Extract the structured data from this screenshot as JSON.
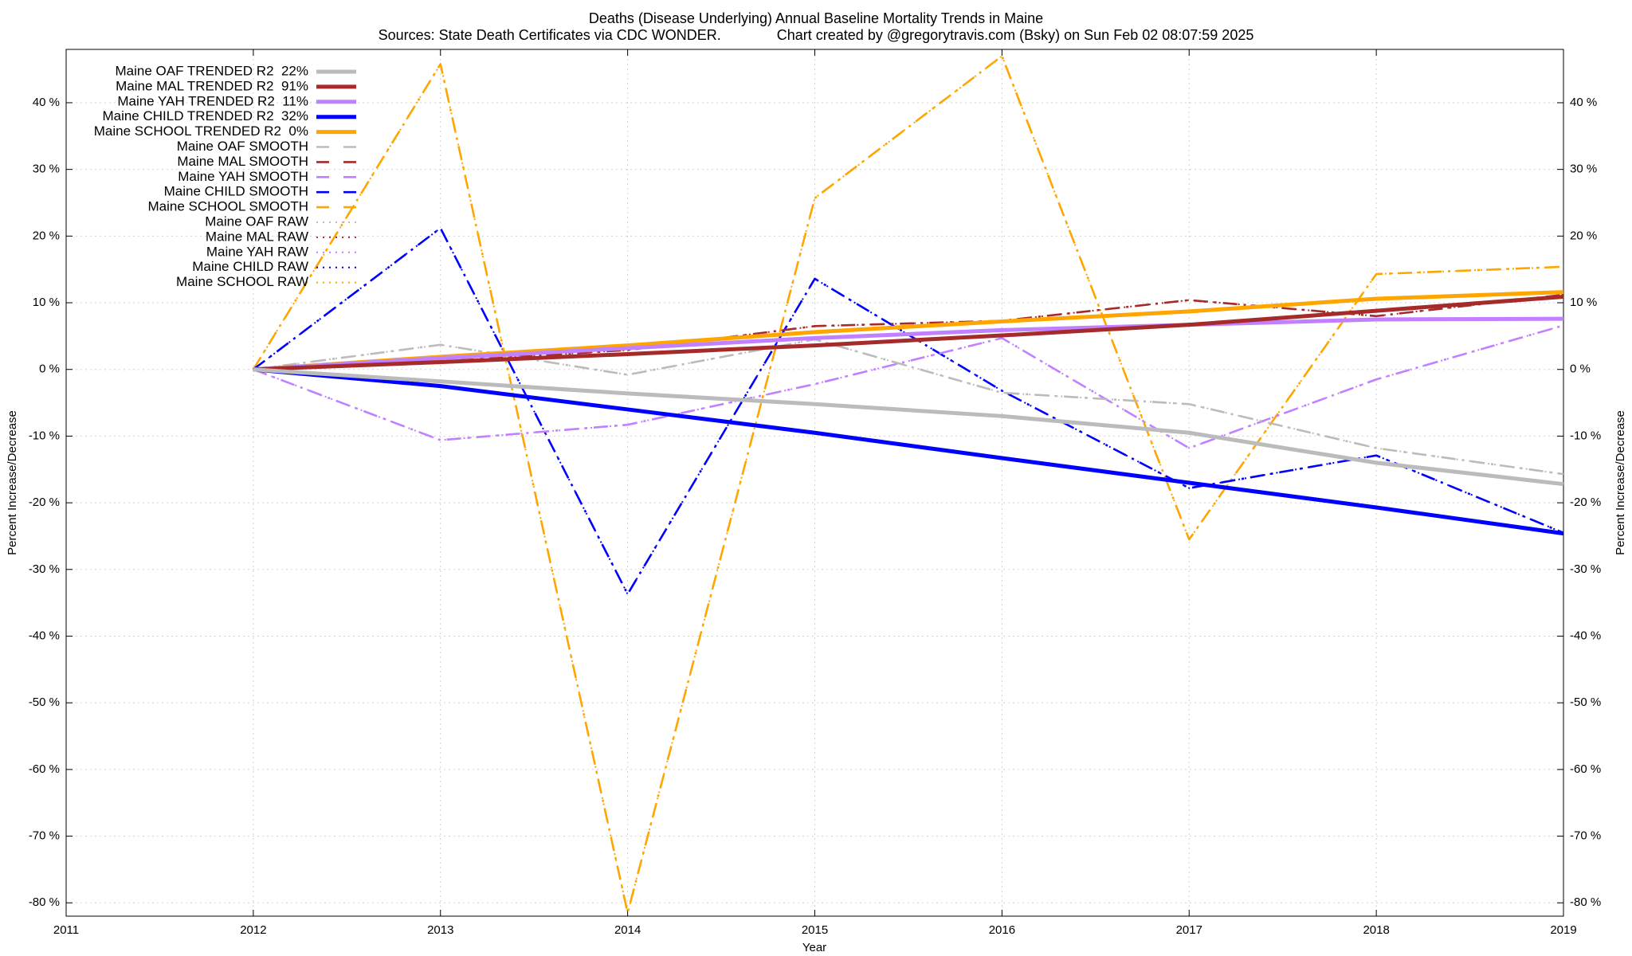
{
  "chart_data": {
    "type": "line",
    "title": "Deaths (Disease Underlying)  Annual Baseline Mortality Trends in Maine",
    "subtitle": "Sources: State Death Certificates via CDC WONDER.              Chart created by @gregorytravis.com (Bsky) on Sun Feb 02 08:07:59 2025",
    "x_label": "Year",
    "y_label": "Percent Increase/Decrease",
    "y2_label": "Percent Increase/Decrease",
    "x": [
      2012,
      2013,
      2014,
      2015,
      2016,
      2017,
      2018,
      2019
    ],
    "xlim": [
      2011,
      2019
    ],
    "xticks": [
      2011,
      2012,
      2013,
      2014,
      2015,
      2016,
      2017,
      2018,
      2019
    ],
    "ylim": [
      -82,
      48
    ],
    "yticks": [
      {
        "value": -80,
        "label": "-80 %"
      },
      {
        "value": -70,
        "label": "-70 %"
      },
      {
        "value": -60,
        "label": "-60 %"
      },
      {
        "value": -50,
        "label": "-50 %"
      },
      {
        "value": -40,
        "label": "-40 %"
      },
      {
        "value": -30,
        "label": "-30 %"
      },
      {
        "value": -20,
        "label": "-20 %"
      },
      {
        "value": -10,
        "label": "-10 %"
      },
      {
        "value": 0,
        "label": "0 %"
      },
      {
        "value": 10,
        "label": "10 %"
      },
      {
        "value": 20,
        "label": "20 %"
      },
      {
        "value": 30,
        "label": "30 %"
      },
      {
        "value": 40,
        "label": "40 %"
      }
    ],
    "grid": true,
    "legend": "top-left",
    "series": [
      {
        "name": "Maine OAF TRENDED R2  22%",
        "color": "#bbbbbb",
        "style": "solid",
        "values": [
          0,
          -1.8,
          -3.6,
          -5.2,
          -7.0,
          -9.5,
          -14.0,
          -17.2
        ]
      },
      {
        "name": "Maine MAL TRENDED R2  91%",
        "color": "#a52a2a",
        "style": "solid",
        "values": [
          0,
          1.1,
          2.3,
          3.6,
          5.1,
          6.7,
          8.8,
          10.9
        ]
      },
      {
        "name": "Maine YAH TRENDED R2  11%",
        "color": "#c080ff",
        "style": "solid",
        "values": [
          0,
          1.7,
          3.2,
          4.7,
          5.9,
          6.7,
          7.5,
          7.6
        ]
      },
      {
        "name": "Maine CHILD TRENDED R2  32%",
        "color": "#0000ff",
        "style": "solid",
        "values": [
          0,
          -2.5,
          -6.0,
          -9.5,
          -13.3,
          -17.0,
          -20.7,
          -24.6
        ]
      },
      {
        "name": "Maine SCHOOL TRENDED R2  0%",
        "color": "#ffa500",
        "style": "solid",
        "values": [
          0,
          1.9,
          3.6,
          5.6,
          7.2,
          8.7,
          10.6,
          11.6
        ]
      },
      {
        "name": "Maine OAF SMOOTH",
        "color": "#bbbbbb",
        "style": "dashdot",
        "values": [
          0,
          3.7,
          -0.8,
          4.5,
          -3.5,
          -5.2,
          -11.8,
          -15.7
        ]
      },
      {
        "name": "Maine MAL SMOOTH",
        "color": "#a52a2a",
        "style": "dashdot",
        "values": [
          0,
          1.2,
          2.9,
          6.5,
          7.3,
          10.4,
          8.0,
          11.2
        ]
      },
      {
        "name": "Maine YAH SMOOTH",
        "color": "#c080ff",
        "style": "dashdot",
        "values": [
          0,
          -10.6,
          -8.3,
          -2.2,
          4.7,
          -11.8,
          -1.5,
          6.6
        ]
      },
      {
        "name": "Maine CHILD SMOOTH",
        "color": "#0000ff",
        "style": "dashdot",
        "values": [
          0,
          21.2,
          -33.7,
          13.6,
          -3.2,
          -17.8,
          -12.9,
          -24.5
        ]
      },
      {
        "name": "Maine SCHOOL SMOOTH",
        "color": "#ffa500",
        "style": "dashdot",
        "values": [
          0,
          45.8,
          -81.5,
          25.7,
          47.0,
          -25.5,
          14.3,
          15.4
        ]
      },
      {
        "name": "Maine OAF RAW",
        "color": "#bbbbbb",
        "style": "dotted",
        "values": [
          0,
          3.7,
          -0.8,
          4.5,
          -3.5,
          -5.2,
          -11.8,
          -15.7
        ]
      },
      {
        "name": "Maine MAL RAW",
        "color": "#a52a2a",
        "style": "dotted",
        "values": [
          0,
          1.2,
          2.9,
          6.5,
          7.3,
          10.4,
          8.0,
          11.2
        ]
      },
      {
        "name": "Maine YAH RAW",
        "color": "#c080ff",
        "style": "dotted",
        "values": [
          0,
          -10.6,
          -8.3,
          -2.2,
          4.7,
          -11.8,
          -1.5,
          6.6
        ]
      },
      {
        "name": "Maine CHILD RAW",
        "color": "#0000ff",
        "style": "dotted",
        "values": [
          0,
          21.2,
          -33.7,
          13.6,
          -3.2,
          -17.8,
          -12.9,
          -24.5
        ]
      },
      {
        "name": "Maine SCHOOL RAW",
        "color": "#ffa500",
        "style": "dotted",
        "values": [
          0,
          45.8,
          -81.5,
          25.7,
          47.0,
          -25.5,
          14.3,
          15.4
        ]
      }
    ]
  }
}
